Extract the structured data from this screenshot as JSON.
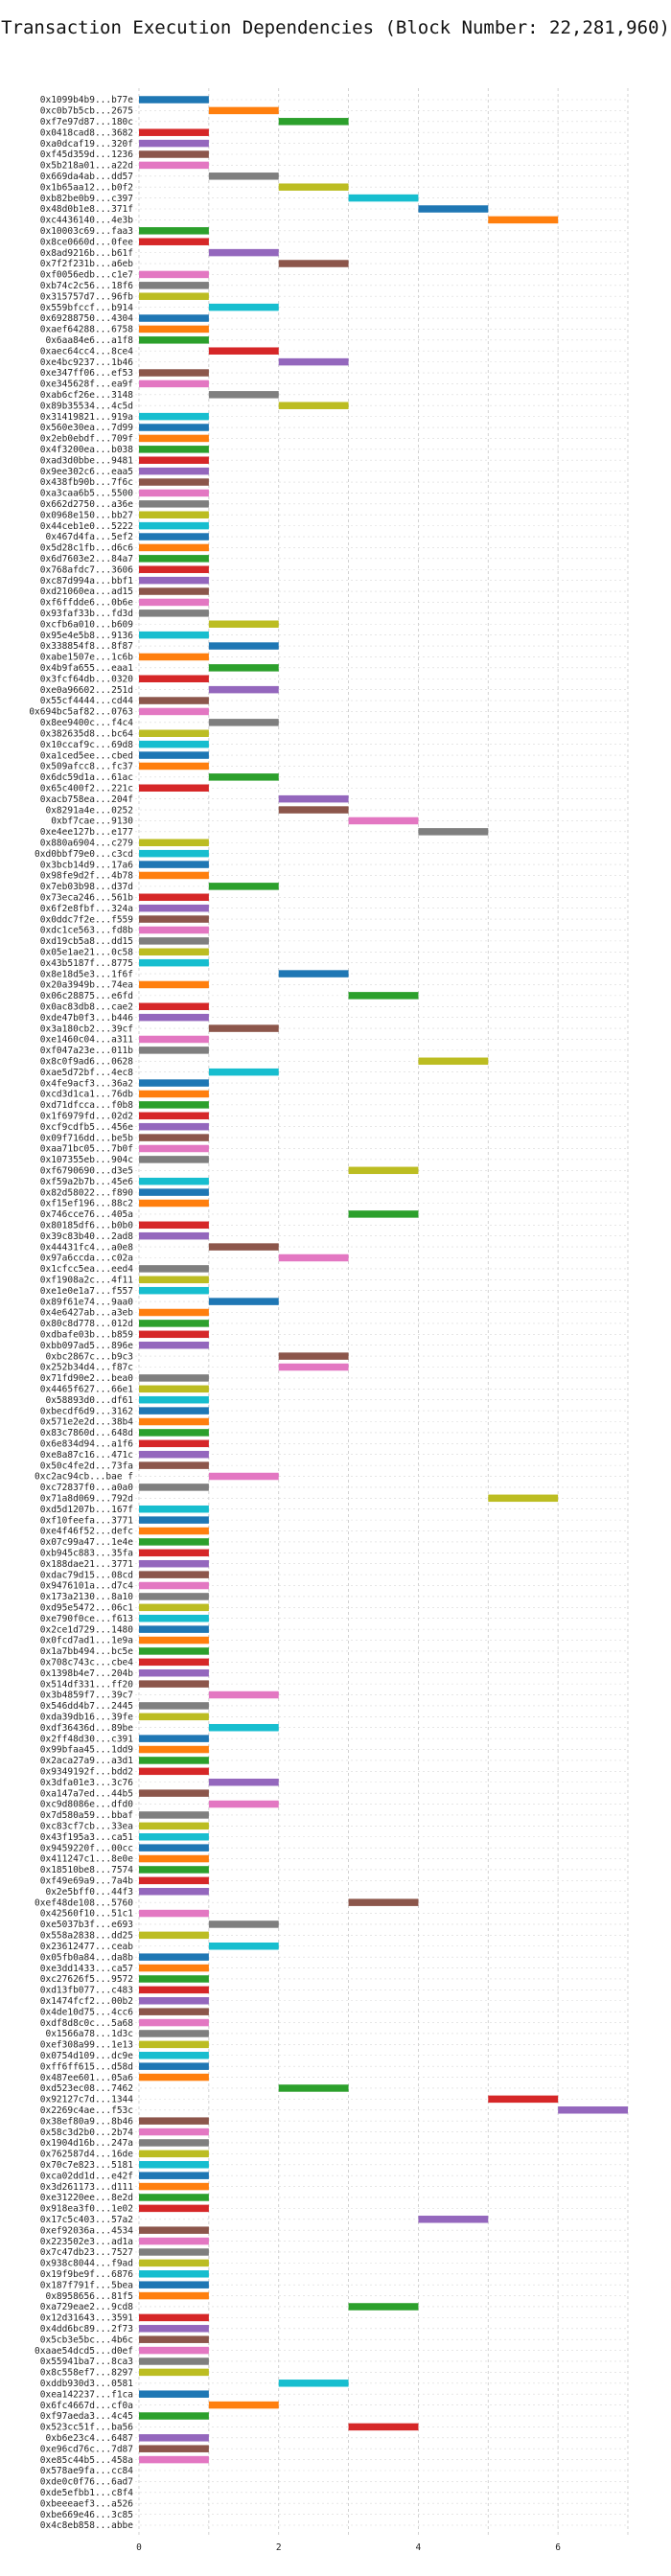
{
  "chart_data": {
    "type": "bar",
    "orientation": "horizontal",
    "title": "Transaction Execution Dependencies (Block Number: 22,281,960)",
    "xlabel": "",
    "ylabel": "",
    "xlim": [
      0,
      7
    ],
    "xticks": [
      0,
      2,
      4,
      6
    ],
    "grid": true,
    "categories": [
      "0x1099b4b9...b77e",
      "0xc0b7b5cb...2675",
      "0xf7e97d87...180c",
      "0x0418cad8...3682",
      "0xa0dcaf19...320f",
      "0xf45d359d...1236",
      "0x5b218a01...a22d",
      "0x669da4ab...dd57",
      "0x1b65aa12...b0f2",
      "0xb82be0b9...c397",
      "0x48d0b1e8...371f",
      "0xc4436140...4e3b",
      "0x10003c69...faa3",
      "0x8ce0660d...0fee",
      "0x8ad9216b...b61f",
      "0x7f2f231b...a6eb",
      "0xf0056edb...c1e7",
      "0xb74c2c56...18f6",
      "0x315757d7...96fb",
      "0x559bfccf...b914",
      "0x69288750...4304",
      "0xaef64288...6758",
      "0x6aa84e6...a1f8",
      "0xaec64cc4...8ce4",
      "0xe4bc9237...1b46",
      "0xe347ff06...ef53",
      "0xe345628f...ea9f",
      "0xab6cf26e...3148",
      "0x89b35534...4c5d",
      "0x31419821...919a",
      "0x560e30ea...7d99",
      "0x2eb0ebdf...709f",
      "0x4f3200ea...b038",
      "0xad3d0bbe...9481",
      "0x9ee302c6...eaa5",
      "0x438fb90b...7f6c",
      "0xa3caa6b5...5500",
      "0x662d2750...a36e",
      "0x0968e150...bb27",
      "0x44ceb1e0...5222",
      "0x467d4fa...5ef2",
      "0x5d28c1fb...d6c6",
      "0x6d7603e2...84a7",
      "0x768afdc7...3606",
      "0xc87d994a...bbf1",
      "0xd21060ea...ad15",
      "0xf6ffdde6...0b6e",
      "0x93faf33b...fd3d",
      "0xcfb6a010...b609",
      "0x95e4e5b8...9136",
      "0x338854f8...8f87",
      "0xabe1507e...1c6b",
      "0x4b9fa655...eaa1",
      "0x3fcf64db...0320",
      "0xe0a96602...251d",
      "0x55cf4444...cd44",
      "0x694bc5af82...0763",
      "0x8ee9400c...f4c4",
      "0x382635d8...bc64",
      "0x10ccaf9c...69d8",
      "0xa1ced5ee...cbed",
      "0x509afcc8...fc37",
      "0x6dc59d1a...61ac",
      "0x65c400f2...221c",
      "0xacb758ea...204f",
      "0x8291a4e...0252",
      "0xbf7cae...9130",
      "0xe4ee127b...e177",
      "0x880a6904...c279",
      "0xd0bbf79e0...c3cd",
      "0x3bcb14d9...17a6",
      "0x98fe9d2f...4b78",
      "0x7eb03b98...d37d",
      "0x73eca246...561b",
      "0x6f2e8fbf...324a",
      "0x0ddc7f2e...f559",
      "0xdc1ce563...fd8b",
      "0xd19cb5a8...dd15",
      "0x05e1ae21...0c58",
      "0x43b5187f...8775",
      "0x8e18d5e3...1f6f",
      "0x20a3949b...74ea",
      "0x06c28875...e6fd",
      "0x0ac83db8...cae2",
      "0xde47b0f3...b446",
      "0x3a180cb2...39cf",
      "0xe1460c04...a311",
      "0xf047a23e...011b",
      "0x8c0f9ad6...0628",
      "0xae5d72bf...4ec8",
      "0x4fe9acf3...36a2",
      "0xcd3d1ca1...76db",
      "0xd71dfcca...f0b8",
      "0x1f6979fd...02d2",
      "0xcf9cdfb5...456e",
      "0x09f716dd...be5b",
      "0xaa71bc05...7b0f",
      "0x107355eb...904c",
      "0xf6790690...d3e5",
      "0xf59a2b7b...45e6",
      "0x82d58022...f890",
      "0xf15ef196...88c2",
      "0x746cce76...405a",
      "0x80185df6...b0b0",
      "0x39c83b40...2ad8",
      "0x44431fc4...a0e8",
      "0x97a6ccda...c02a",
      "0x1cfcc5ea...eed4",
      "0xf1908a2c...4f11",
      "0xe1e0e1a7...f557",
      "0x89f61e74...9aa0",
      "0x4e6427ab...a3eb",
      "0x80c8d778...012d",
      "0xdbafe03b...b859",
      "0xbb097ad5...896e",
      "0xbc2867c...b9c3",
      "0x252b34d4...f87c",
      "0x71fd90e2...bea0",
      "0x4465f627...66e1",
      "0x58893d0...df61",
      "0xbecdf6d9...3162",
      "0x571e2e2d...38b4",
      "0x83c7860d...648d",
      "0x6e834d94...a1f6",
      "0xe8a87c16...471c",
      "0x50c4fe2d...73fa",
      "0xc2ac94cb...bae f",
      "0xc72837f0...a0a0",
      "0x71a8d069...792d",
      "0xd5d1207b...167f",
      "0xf10feefa...3771",
      "0xe4f46f52...defc",
      "0x07c99a47...1e4e",
      "0xb945c883...35fa",
      "0x188dae21...3771",
      "0xdac79d15...08cd",
      "0x9476101a...d7c4",
      "0x173a2130...8a10",
      "0xd95e5472...06c1",
      "0xe790f0ce...f613",
      "0x2ce1d729...1480",
      "0x0fcd7ad1...1e9a",
      "0x1a7bb494...bc5e",
      "0x708c743c...cbe4",
      "0x1398b4e7...204b",
      "0x514df331...ff20",
      "0x3b4859f7...39c7",
      "0x546dd4b7...2445",
      "0xda39db16...39fe",
      "0xdf36436d...89be",
      "0x2ff48d30...c391",
      "0x99bfaa45...1dd9",
      "0x2aca27a9...a3d1",
      "0x9349192f...bdd2",
      "0x3dfa01e3...3c76",
      "0xa147a7ed...44b5",
      "0xc9d8086e...dfd0",
      "0x7d580a59...bbaf",
      "0xc83cf7cb...33ea",
      "0x43f195a3...ca51",
      "0x9459220f...00cc",
      "0x411247c1...8e0e",
      "0x18510be8...7574",
      "0xf49e69a9...7a4b",
      "0x2e5bff0...44f3",
      "0xef48de108...5760",
      "0x42560f10...51c1",
      "0xe5037b3f...e693",
      "0x558a2838...dd25",
      "0x23612477...ceab",
      "0x05fb0a84...da8b",
      "0xe3dd1433...ca57",
      "0xc27626f5...9572",
      "0xd13fb077...c483",
      "0x1474fcf2...00b2",
      "0x4de10d75...4cc6",
      "0xdf8d8c0c...5a68",
      "0x1566a78...1d3c",
      "0xef308a99...1e13",
      "0x0754d109...dc9e",
      "0xff6ff615...d58d",
      "0x487ee601...05a6",
      "0xd523ec08...7462",
      "0x92127c7d...1344",
      "0x2269c4ae...f53c",
      "0x38ef80a9...8b46",
      "0x58c3d2b0...2b74",
      "0x1904d16b...247a",
      "0x762587d4...16de",
      "0x70c7e823...5181",
      "0xca02dd1d...e42f",
      "0x3d261173...d111",
      "0xe31220ee...8e2d",
      "0x918ea3f0...1e02",
      "0x17c5c403...57a2",
      "0xef92036a...4534",
      "0x223502e3...ad1a",
      "0x7c47db23...7527",
      "0x938c8044...f9ad",
      "0x19f9be9f...6876",
      "0x187f791f...5bea",
      "0x8958656...81f5",
      "0xa729eae2...9cd8",
      "0x12d31643...3591",
      "0x4dd6bc89...2f73",
      "0x5cb3e5bc...4b6c",
      "0xaae54dcd5...d0ef",
      "0x55941ba7...8ca3",
      "0x8c558ef7...8297",
      "0xddb930d3...0581",
      "0xea142237...f1ca",
      "0x6fc4667d...cf0a",
      "0xf97aeda3...4c45",
      "0x523cc51f...ba56",
      "0xb6e23c4...6487",
      "0xe96cd76c...7d87",
      "0xe85c44b5...458a",
      "0x578ae9fa...cc84",
      "0xde0c0f76...6ad7",
      "0xde5efbb1...c8f4",
      "0xbeeeaef3...a526",
      "0xbe669e46...3c85",
      "0x4c8eb858...abbe"
    ],
    "start": [
      0,
      1,
      2,
      0,
      0,
      0,
      0,
      1,
      2,
      3,
      4,
      5,
      0,
      0,
      1,
      2,
      0,
      0,
      0,
      1,
      0,
      0,
      0,
      1,
      2,
      0,
      0,
      1,
      2,
      0,
      0,
      0,
      0,
      0,
      0,
      0,
      0,
      0,
      0,
      0,
      0,
      0,
      0,
      0,
      0,
      0,
      0,
      0,
      1,
      0,
      1,
      0,
      1,
      0,
      1,
      0,
      0,
      1,
      0,
      0,
      0,
      0,
      1,
      0,
      2,
      2,
      3,
      4,
      0,
      0,
      0,
      0,
      1,
      0,
      0,
      0,
      0,
      0,
      0,
      0,
      2,
      0,
      3,
      0,
      0,
      1,
      0,
      0,
      4,
      1,
      0,
      0,
      0,
      0,
      0,
      0,
      0,
      0,
      3,
      0,
      0,
      0,
      3,
      0,
      0,
      1,
      2,
      0,
      0,
      0,
      1,
      0,
      0,
      0,
      0,
      2,
      2,
      0,
      0,
      0,
      0,
      0,
      0,
      0,
      0,
      0,
      1,
      0,
      5,
      0,
      0,
      0,
      0,
      0,
      0,
      0,
      0,
      0,
      0,
      0,
      0,
      0,
      0,
      0,
      0,
      0,
      1,
      0,
      0,
      1,
      0,
      0,
      0,
      0,
      1,
      0,
      1,
      0,
      0,
      0,
      0,
      0,
      0,
      0,
      0,
      3,
      0,
      1,
      0,
      1,
      0,
      0,
      0,
      0,
      0,
      0,
      0,
      0,
      0,
      0,
      0,
      0,
      2,
      5,
      6,
      0,
      0,
      0,
      0,
      0,
      0,
      0,
      0,
      0,
      4,
      0,
      0,
      0,
      0,
      0,
      0,
      0,
      3,
      0,
      0,
      0,
      0,
      0,
      0,
      2,
      0,
      1,
      0,
      3,
      0,
      0,
      0
    ],
    "duration": [
      1,
      1,
      1,
      1,
      1,
      1,
      1,
      1,
      1,
      1,
      1,
      1,
      1,
      1,
      1,
      1,
      1,
      1,
      1,
      1,
      1,
      1,
      1,
      1,
      1,
      1,
      1,
      1,
      1,
      1,
      1,
      1,
      1,
      1,
      1,
      1,
      1,
      1,
      1,
      1,
      1,
      1,
      1,
      1,
      1,
      1,
      1,
      1,
      1,
      1,
      1,
      1,
      1,
      1,
      1,
      1,
      1,
      1,
      1,
      1,
      1,
      1,
      1,
      1,
      1,
      1,
      1,
      1,
      1,
      1,
      1,
      1,
      1,
      1,
      1,
      1,
      1,
      1,
      1,
      1,
      1,
      1,
      1,
      1,
      1,
      1,
      1,
      1,
      1,
      1,
      1,
      1,
      1,
      1,
      1,
      1,
      1,
      1,
      1,
      1,
      1,
      1,
      1,
      1,
      1,
      1,
      1,
      1,
      1,
      1,
      1,
      1,
      1,
      1,
      1,
      1,
      1,
      1,
      1,
      1,
      1,
      1,
      1,
      1,
      1,
      1,
      1,
      1,
      1,
      1,
      1,
      1,
      1,
      1,
      1,
      1,
      1,
      1,
      1,
      1,
      1,
      1,
      1,
      1,
      1,
      1,
      1,
      1,
      1,
      1,
      1,
      1,
      1,
      1,
      1,
      1,
      1,
      1,
      1,
      1,
      1,
      1,
      1,
      1,
      1,
      1,
      1,
      1,
      1,
      1,
      1,
      1,
      1,
      1,
      1,
      1,
      1,
      1,
      1,
      1,
      1,
      1,
      1,
      1,
      1,
      1,
      1,
      1,
      1,
      1,
      1,
      1,
      1,
      1,
      1,
      1,
      1,
      1,
      1,
      1,
      1,
      1,
      1,
      1,
      1,
      1,
      1,
      1,
      1,
      1,
      1,
      1,
      1,
      1,
      1,
      1,
      1
    ],
    "palette": [
      "#1f77b4",
      "#ff7f0e",
      "#2ca02c",
      "#d62728",
      "#9467bd",
      "#8c564b",
      "#e377c2",
      "#7f7f7f",
      "#bcbd22",
      "#17becf"
    ]
  }
}
